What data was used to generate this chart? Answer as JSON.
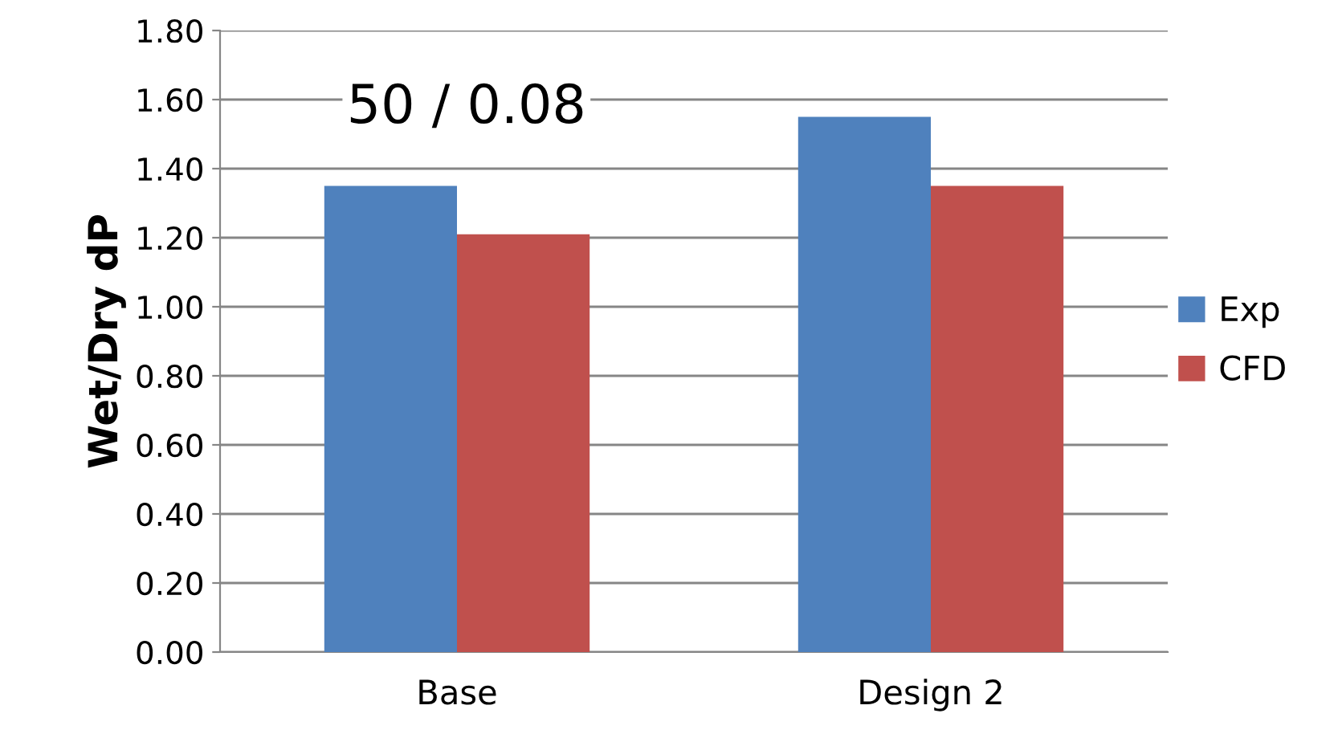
{
  "chart_data": {
    "type": "bar",
    "ylabel": "Wet/Dry dP",
    "categories": [
      "Base",
      "Design 2"
    ],
    "series": [
      {
        "name": "Exp",
        "color": "#4f81bd",
        "values": [
          1.35,
          1.55
        ]
      },
      {
        "name": "CFD",
        "color": "#c0504d",
        "values": [
          1.21,
          1.35
        ]
      }
    ],
    "ylim": [
      0,
      1.8
    ],
    "yticks": [
      {
        "value": 0,
        "label": "0.00"
      },
      {
        "value": 0.2,
        "label": "0.20"
      },
      {
        "value": 0.4,
        "label": "0.40"
      },
      {
        "value": 0.6,
        "label": "0.60"
      },
      {
        "value": 0.8,
        "label": "0.80"
      },
      {
        "value": 1.0,
        "label": "1.00"
      },
      {
        "value": 1.2,
        "label": "1.20"
      },
      {
        "value": 1.4,
        "label": "1.40"
      },
      {
        "value": 1.6,
        "label": "1.60"
      },
      {
        "value": 1.8,
        "label": "1.80"
      }
    ],
    "grid": "y",
    "legend": "right",
    "annotations": [
      "50 / 0.08"
    ]
  }
}
